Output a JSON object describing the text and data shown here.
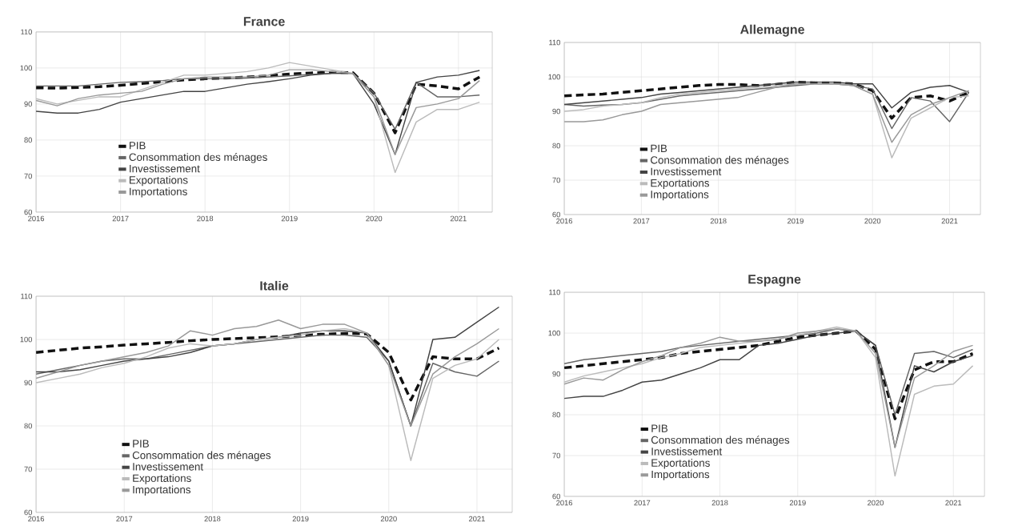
{
  "chart_data": [
    {
      "type": "line",
      "title": "France",
      "x": [
        2016,
        2016.25,
        2016.5,
        2016.75,
        2017,
        2017.25,
        2017.5,
        2017.75,
        2018,
        2018.25,
        2018.5,
        2018.75,
        2019,
        2019.25,
        2019.5,
        2019.75,
        2020,
        2020.25,
        2020.5,
        2020.75,
        2021,
        2021.25
      ],
      "xlim": [
        2016,
        2021.4
      ],
      "xticks": [
        2016,
        2017,
        2018,
        2019,
        2020,
        2021
      ],
      "ylim": [
        60,
        110
      ],
      "yticks": [
        60,
        70,
        80,
        90,
        100,
        110
      ],
      "grid": true,
      "legend": "bottom left",
      "marker": "none",
      "series": [
        {
          "name": "PIB",
          "color": "#111111",
          "line_style": "dashed",
          "values": [
            94.5,
            94.4,
            94.6,
            94.8,
            95.2,
            95.7,
            96.2,
            96.7,
            97.0,
            97.2,
            97.5,
            97.8,
            98.3,
            98.6,
            98.8,
            98.7,
            93,
            82,
            95.5,
            95,
            94.2,
            97.5
          ]
        },
        {
          "name": "Consommation des ménages",
          "color": "#666666",
          "line_style": "solid",
          "values": [
            95,
            95,
            95,
            95.5,
            96,
            96.2,
            96.5,
            97,
            97,
            97,
            97.2,
            97.5,
            97.8,
            98.2,
            98.5,
            98.5,
            93,
            83,
            96,
            92,
            92,
            92.5
          ]
        },
        {
          "name": "Investissement",
          "color": "#444444",
          "line_style": "solid",
          "values": [
            88,
            87.5,
            87.5,
            88.5,
            90.5,
            91.5,
            92.5,
            93.5,
            93.5,
            94.5,
            95.5,
            96.2,
            97,
            98,
            98.5,
            98.5,
            90,
            76,
            96,
            97.5,
            98,
            99.3
          ]
        },
        {
          "name": "Exportations",
          "color": "#bbbbbb",
          "line_style": "solid",
          "values": [
            91.5,
            90,
            91,
            92,
            92,
            94,
            96,
            98,
            98,
            98.5,
            99,
            100,
            101.5,
            100.5,
            99.5,
            98.5,
            92,
            71,
            85,
            88.5,
            88.5,
            90.5
          ]
        },
        {
          "name": "Importations",
          "color": "#999999",
          "line_style": "solid",
          "values": [
            91,
            89.5,
            91.5,
            92.5,
            93,
            93.5,
            95.5,
            97,
            97.5,
            97.5,
            97.5,
            98,
            99.5,
            99.5,
            99,
            98.5,
            92,
            76,
            89,
            90,
            91.5,
            96.5
          ]
        }
      ]
    },
    {
      "type": "line",
      "title": "Allemagne",
      "x": [
        2016,
        2016.25,
        2016.5,
        2016.75,
        2017,
        2017.25,
        2017.5,
        2017.75,
        2018,
        2018.25,
        2018.5,
        2018.75,
        2019,
        2019.25,
        2019.5,
        2019.75,
        2020,
        2020.25,
        2020.5,
        2020.75,
        2021,
        2021.25
      ],
      "xlim": [
        2016,
        2021.4
      ],
      "xticks": [
        2016,
        2017,
        2018,
        2019,
        2020,
        2021
      ],
      "ylim": [
        60,
        110
      ],
      "yticks": [
        60,
        70,
        80,
        90,
        100,
        110
      ],
      "grid": true,
      "legend": "bottom left",
      "marker": "none",
      "series": [
        {
          "name": "PIB",
          "color": "#111111",
          "line_style": "dashed",
          "values": [
            94.5,
            94.8,
            95,
            95.5,
            96,
            96.5,
            97,
            97.5,
            97.8,
            97.8,
            97.5,
            97.8,
            98.5,
            98.3,
            98.3,
            98,
            96,
            88,
            94,
            94.5,
            93,
            95.5
          ]
        },
        {
          "name": "Consommation des ménages",
          "color": "#666666",
          "line_style": "solid",
          "values": [
            92,
            91.5,
            91.8,
            92,
            92.5,
            93.5,
            94.5,
            95,
            95.5,
            96,
            96.5,
            97,
            97.5,
            98,
            98,
            97.5,
            96.5,
            85,
            94,
            93,
            87,
            95.5
          ]
        },
        {
          "name": "Investissement",
          "color": "#444444",
          "line_style": "solid",
          "values": [
            92,
            92.5,
            93,
            93.5,
            94,
            95,
            95.5,
            96,
            96.5,
            97,
            97.5,
            98,
            98.5,
            98.5,
            98.5,
            98,
            98,
            91,
            95.5,
            97,
            97.5,
            95.5
          ]
        },
        {
          "name": "Exportations",
          "color": "#bbbbbb",
          "line_style": "solid",
          "values": [
            90,
            90.5,
            91.5,
            92,
            92.5,
            94,
            95,
            95.5,
            96,
            96.5,
            97,
            97.5,
            98,
            98,
            98,
            97.5,
            95,
            76.5,
            88,
            91,
            94,
            94.5
          ]
        },
        {
          "name": "Importations",
          "color": "#999999",
          "line_style": "solid",
          "values": [
            87,
            87,
            87.5,
            89,
            90,
            92,
            92.5,
            93,
            93.5,
            94,
            95.5,
            97,
            98,
            98,
            98,
            97.5,
            95,
            81,
            89,
            92,
            94,
            96
          ]
        }
      ]
    },
    {
      "type": "line",
      "title": "Italie",
      "x": [
        2016,
        2016.25,
        2016.5,
        2016.75,
        2017,
        2017.25,
        2017.5,
        2017.75,
        2018,
        2018.25,
        2018.5,
        2018.75,
        2019,
        2019.25,
        2019.5,
        2019.75,
        2020,
        2020.25,
        2020.5,
        2020.75,
        2021,
        2021.25
      ],
      "xlim": [
        2016,
        2021.4
      ],
      "xticks": [
        2016,
        2017,
        2018,
        2019,
        2020,
        2021
      ],
      "ylim": [
        60,
        110
      ],
      "yticks": [
        60,
        70,
        80,
        90,
        100,
        110
      ],
      "grid": true,
      "legend": "bottom left",
      "marker": "none",
      "series": [
        {
          "name": "PIB",
          "color": "#111111",
          "line_style": "dashed",
          "values": [
            97,
            97.5,
            98,
            98.3,
            98.7,
            99,
            99.3,
            99.7,
            100,
            100.2,
            100.4,
            100.6,
            101,
            101.2,
            101.4,
            101.3,
            97,
            86,
            96,
            95.5,
            95.5,
            98
          ]
        },
        {
          "name": "Consommation des ménages",
          "color": "#666666",
          "line_style": "solid",
          "values": [
            92,
            93,
            94,
            95,
            95.5,
            95.5,
            96.5,
            97.5,
            98.5,
            99,
            99.5,
            100,
            100.5,
            101,
            101,
            100.5,
            95,
            80,
            94.5,
            92.5,
            91.5,
            95
          ]
        },
        {
          "name": "Investissement",
          "color": "#444444",
          "line_style": "solid",
          "values": [
            92.5,
            92.5,
            93,
            94,
            95,
            95.5,
            96,
            97,
            98.5,
            99,
            100,
            100.5,
            101.5,
            102,
            102,
            101.5,
            95,
            80,
            100,
            100.5,
            104,
            107.5
          ]
        },
        {
          "name": "Exportations",
          "color": "#bbbbbb",
          "line_style": "solid",
          "values": [
            90,
            91,
            92,
            93.5,
            94.5,
            96,
            98,
            99,
            98.5,
            99,
            100,
            100.5,
            101,
            102,
            102.5,
            101.5,
            94,
            72,
            91,
            94,
            95.5,
            100
          ]
        },
        {
          "name": "Importations",
          "color": "#999999",
          "line_style": "solid",
          "values": [
            91,
            92.5,
            94,
            95,
            96,
            97,
            98.5,
            102,
            101,
            102.5,
            103,
            104.5,
            102.5,
            103.5,
            103.5,
            101.5,
            94,
            80,
            92,
            96,
            99,
            102.5
          ]
        }
      ]
    },
    {
      "type": "line",
      "title": "Espagne",
      "x": [
        2016,
        2016.25,
        2016.5,
        2016.75,
        2017,
        2017.25,
        2017.5,
        2017.75,
        2018,
        2018.25,
        2018.5,
        2018.75,
        2019,
        2019.25,
        2019.5,
        2019.75,
        2020,
        2020.25,
        2020.5,
        2020.75,
        2021,
        2021.25
      ],
      "xlim": [
        2016,
        2021.4
      ],
      "xticks": [
        2016,
        2017,
        2018,
        2019,
        2020,
        2021
      ],
      "ylim": [
        60,
        110
      ],
      "yticks": [
        60,
        70,
        80,
        90,
        100,
        110
      ],
      "grid": true,
      "legend": "bottom left",
      "marker": "none",
      "series": [
        {
          "name": "PIB",
          "color": "#111111",
          "line_style": "dashed",
          "values": [
            91.5,
            92,
            92.5,
            93,
            93.5,
            94,
            95,
            95.5,
            96,
            96.5,
            97,
            98,
            99,
            99.5,
            100,
            100.5,
            96,
            79,
            91,
            93,
            93,
            95
          ]
        },
        {
          "name": "Consommation des ménages",
          "color": "#666666",
          "line_style": "solid",
          "values": [
            92.5,
            93.5,
            94,
            94.5,
            95,
            95.5,
            96.5,
            97,
            97.5,
            98,
            98.5,
            99,
            99.5,
            100,
            101,
            100.5,
            97,
            80,
            95,
            95.5,
            94,
            96
          ]
        },
        {
          "name": "Investissement",
          "color": "#444444",
          "line_style": "solid",
          "values": [
            84,
            84.5,
            84.5,
            86,
            88,
            88.5,
            90,
            91.5,
            93.5,
            93.5,
            97,
            97.5,
            98.5,
            99.5,
            100,
            100.5,
            97,
            72,
            92,
            90.5,
            93,
            94.5
          ]
        },
        {
          "name": "Exportations",
          "color": "#bbbbbb",
          "line_style": "solid",
          "values": [
            88,
            89.5,
            90.5,
            91.5,
            92.5,
            94,
            95,
            96.5,
            97,
            97.5,
            98,
            98.5,
            99.5,
            100.5,
            101.5,
            100.5,
            94,
            65,
            85,
            87,
            87.5,
            92
          ]
        },
        {
          "name": "Importations",
          "color": "#999999",
          "line_style": "solid",
          "values": [
            87.5,
            89,
            88.5,
            91,
            93,
            94.5,
            96.5,
            97.5,
            99,
            98,
            98,
            98.5,
            100,
            100.5,
            101,
            100.5,
            95,
            72,
            89,
            92,
            95.5,
            97
          ]
        }
      ]
    }
  ]
}
